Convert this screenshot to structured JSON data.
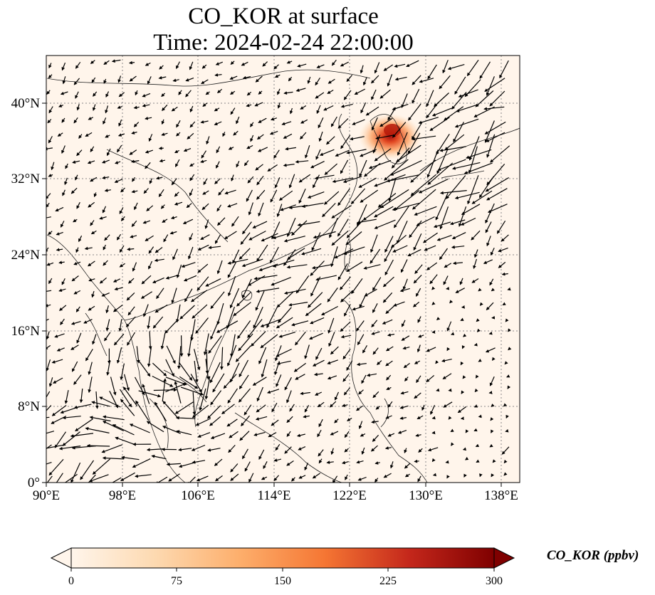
{
  "title": {
    "line1": "CO_KOR at surface",
    "line2": "Time: 2024-02-24 22:00:00"
  },
  "map": {
    "lon_range": [
      90,
      140
    ],
    "lat_range": [
      0,
      45
    ],
    "gridlines": "dotted",
    "x_ticks": [
      "90°E",
      "98°E",
      "106°E",
      "114°E",
      "122°E",
      "130°E",
      "138°E"
    ],
    "y_ticks": [
      "0°",
      "8°N",
      "16°N",
      "24°N",
      "32°N",
      "40°N"
    ],
    "background_color": "#fff5eb",
    "overlay": "wind vectors (quiver)",
    "concentration_hotspot": {
      "region": "Korean Peninsula",
      "color": "#c4271b"
    }
  },
  "colorbar": {
    "label": "CO_KOR (ppbv)",
    "ticks": [
      "0",
      "75",
      "150",
      "225",
      "300"
    ],
    "min": 0,
    "max": 300,
    "colormap": [
      "#fff5eb",
      "#fdd4a6",
      "#fd9c52",
      "#e95d21",
      "#b51a0b",
      "#7f0000"
    ],
    "extend": "both"
  }
}
